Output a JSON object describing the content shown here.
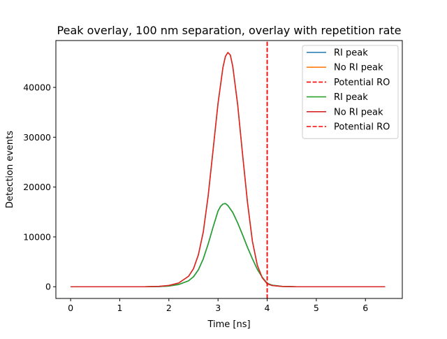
{
  "chart_data": {
    "type": "line",
    "title": "Peak overlay, 100 nm separation, overlay with repetition rate",
    "xlabel": "Time [ns]",
    "ylabel": "Detection events",
    "xlim": [
      -0.3,
      6.75
    ],
    "ylim": [
      -2350,
      49400
    ],
    "x_ticks": [
      0,
      1,
      2,
      3,
      4,
      5,
      6
    ],
    "y_ticks": [
      0,
      10000,
      20000,
      30000,
      40000
    ],
    "grid": false,
    "legend_position": "top-right",
    "series": [
      {
        "name": "RI peak",
        "color": "#1f77b4",
        "style": "solid",
        "x": [
          0,
          0.5,
          1.0,
          1.5,
          1.8,
          2.0,
          2.2,
          2.4,
          2.5,
          2.6,
          2.7,
          2.8,
          2.9,
          3.0,
          3.05,
          3.1,
          3.15,
          3.2,
          3.3,
          3.4,
          3.5,
          3.6,
          3.7,
          3.8,
          3.9,
          4.0,
          4.1,
          4.3,
          4.6,
          5.0,
          5.5,
          6.0,
          6.4
        ],
        "y": [
          0,
          0,
          0,
          0,
          50,
          150,
          450,
          1200,
          2000,
          3400,
          5600,
          8600,
          12000,
          15200,
          16100,
          16600,
          16700,
          16300,
          14900,
          12800,
          10400,
          7900,
          5600,
          3500,
          1900,
          700,
          300,
          80,
          0,
          0,
          0,
          0,
          0
        ]
      },
      {
        "name": "No RI peak",
        "color": "#ff7f0e",
        "style": "solid",
        "x": [
          0,
          0.5,
          1.0,
          1.5,
          1.8,
          2.0,
          2.2,
          2.4,
          2.5,
          2.6,
          2.7,
          2.8,
          2.9,
          3.0,
          3.1,
          3.15,
          3.2,
          3.25,
          3.3,
          3.4,
          3.5,
          3.6,
          3.7,
          3.8,
          3.9,
          4.0,
          4.1,
          4.3,
          4.6,
          5.0,
          5.5,
          6.0,
          6.4
        ],
        "y": [
          0,
          0,
          0,
          0,
          80,
          250,
          750,
          2100,
          3600,
          6400,
          11000,
          18300,
          27500,
          36800,
          44000,
          46200,
          47000,
          46500,
          44200,
          36500,
          26500,
          16900,
          9100,
          4300,
          1800,
          600,
          250,
          60,
          0,
          0,
          0,
          0,
          0
        ]
      },
      {
        "name": "Potential RO",
        "color": "#ff0000",
        "style": "dashed",
        "x": [
          4,
          4
        ],
        "y": [
          -2350,
          49400
        ]
      },
      {
        "name": "RI peak",
        "color": "#2ca02c",
        "style": "solid",
        "x": [
          0,
          0.5,
          1.0,
          1.5,
          1.8,
          2.0,
          2.2,
          2.4,
          2.5,
          2.6,
          2.7,
          2.8,
          2.9,
          3.0,
          3.05,
          3.1,
          3.15,
          3.2,
          3.3,
          3.4,
          3.5,
          3.6,
          3.7,
          3.8,
          3.9,
          4.0,
          4.1,
          4.3,
          4.6,
          5.0,
          5.5,
          6.0,
          6.4
        ],
        "y": [
          0,
          0,
          0,
          0,
          50,
          150,
          450,
          1200,
          2000,
          3400,
          5600,
          8600,
          12000,
          15200,
          16100,
          16600,
          16700,
          16300,
          14900,
          12800,
          10400,
          7900,
          5600,
          3500,
          1900,
          700,
          300,
          80,
          0,
          0,
          0,
          0,
          0
        ]
      },
      {
        "name": "No RI peak",
        "color": "#d62728",
        "style": "solid",
        "x": [
          0,
          0.5,
          1.0,
          1.5,
          1.8,
          2.0,
          2.2,
          2.4,
          2.5,
          2.6,
          2.7,
          2.8,
          2.9,
          3.0,
          3.1,
          3.15,
          3.2,
          3.25,
          3.3,
          3.4,
          3.5,
          3.6,
          3.7,
          3.8,
          3.9,
          4.0,
          4.1,
          4.3,
          4.6,
          5.0,
          5.5,
          6.0,
          6.4
        ],
        "y": [
          0,
          0,
          0,
          0,
          80,
          250,
          750,
          2100,
          3600,
          6400,
          11000,
          18300,
          27500,
          36800,
          44000,
          46200,
          47000,
          46500,
          44200,
          36500,
          26500,
          16900,
          9100,
          4300,
          1800,
          600,
          250,
          60,
          0,
          0,
          0,
          0,
          0
        ]
      },
      {
        "name": "Potential RO",
        "color": "#ff0000",
        "style": "dashed",
        "x": [
          4,
          4
        ],
        "y": [
          -2350,
          49400
        ]
      }
    ]
  }
}
